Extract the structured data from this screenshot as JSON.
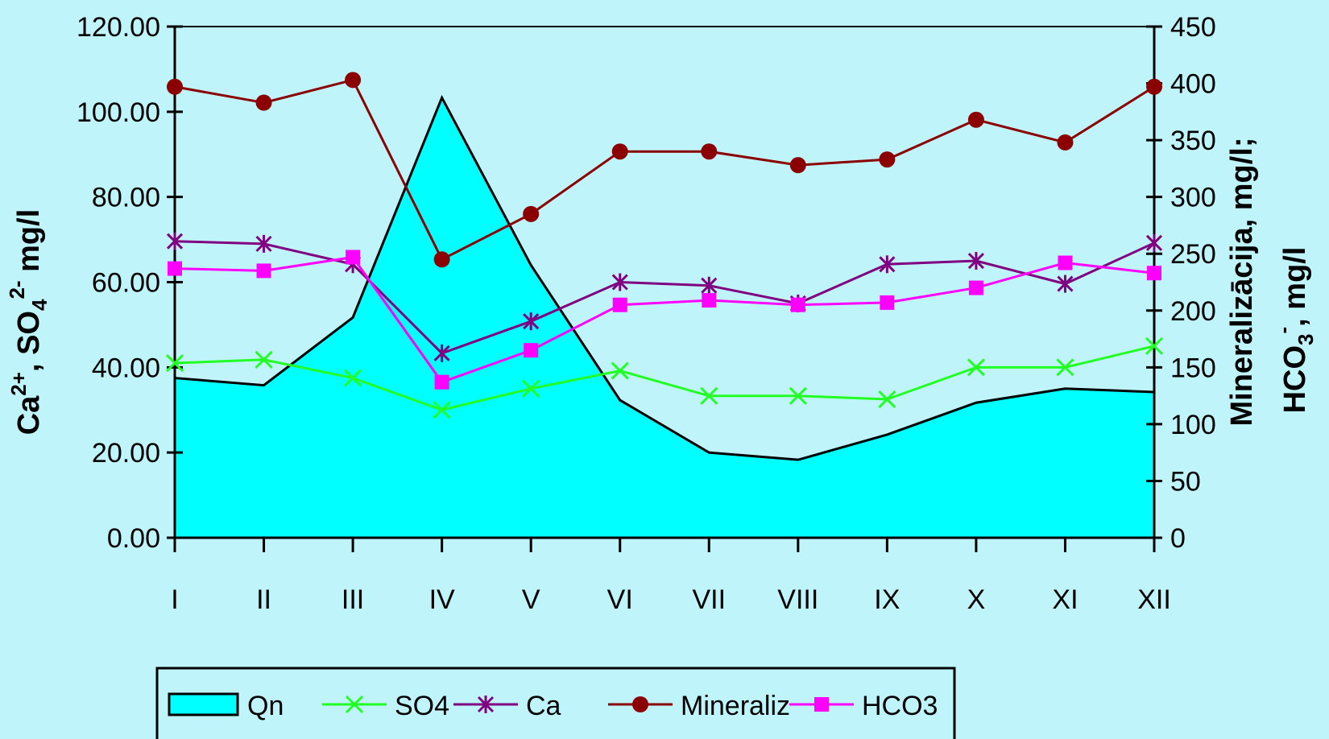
{
  "chart_data": {
    "type": "line",
    "categories": [
      "I",
      "II",
      "III",
      "IV",
      "V",
      "VI",
      "VII",
      "VIII",
      "IX",
      "X",
      "XI",
      "XII"
    ],
    "y_left": {
      "range": [
        0,
        120
      ],
      "ticks": [
        "0.00",
        "20.00",
        "40.00",
        "60.00",
        "80.00",
        "100.00",
        "120.00"
      ],
      "label_parts": [
        "Ca",
        "2+",
        ", SO",
        "4",
        "2-",
        " mg/l"
      ]
    },
    "y_right": {
      "range": [
        0,
        450
      ],
      "ticks": [
        "0",
        "50",
        "100",
        "150",
        "200",
        "250",
        "300",
        "350",
        "400",
        "450"
      ],
      "label_line1": "Mineralizācija, mg/l;",
      "label_line2_parts": [
        "HCO",
        "3",
        "-",
        ", mg/l"
      ]
    },
    "series": [
      {
        "name": "Qn",
        "kind": "area",
        "axis": "left",
        "color": "#00ffff",
        "values": [
          37.5,
          35.8,
          51.7,
          103.3,
          64.0,
          32.3,
          20.0,
          18.3,
          24.2,
          31.7,
          35.0,
          34.2
        ]
      },
      {
        "name": "SO4",
        "kind": "line",
        "axis": "left",
        "color": "#22ff22",
        "marker": "x",
        "values": [
          41.0,
          41.8,
          37.5,
          30.0,
          35.0,
          39.2,
          33.3,
          33.3,
          32.5,
          40.0,
          40.0,
          45.0
        ]
      },
      {
        "name": "Ca",
        "kind": "line",
        "axis": "left",
        "color": "#800080",
        "marker": "asterisk",
        "values": [
          69.6,
          69.0,
          64.2,
          43.3,
          50.8,
          60.0,
          59.2,
          55.0,
          64.2,
          65.0,
          59.6,
          69.2
        ]
      },
      {
        "name": "Mineraliz",
        "kind": "line",
        "axis": "right",
        "color": "#8b0000",
        "marker": "circle",
        "values": [
          397,
          383,
          403,
          245,
          285,
          340,
          340,
          328,
          333,
          368,
          348,
          397
        ]
      },
      {
        "name": "HCO3",
        "kind": "line",
        "axis": "right",
        "color": "#ff00ff",
        "marker": "square",
        "values": [
          237,
          235,
          247,
          137,
          165,
          205,
          209,
          205,
          207,
          220,
          242,
          233
        ]
      }
    ],
    "grid": false,
    "legend_position": "bottom"
  }
}
